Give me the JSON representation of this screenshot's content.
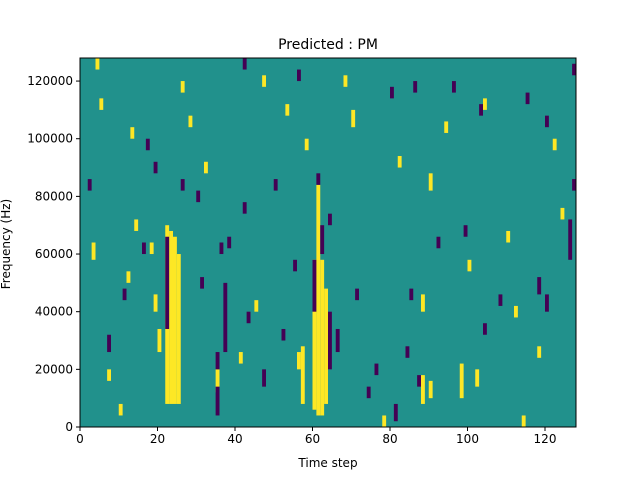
{
  "chart_data": {
    "type": "heatmap",
    "title": "Predicted : PM",
    "xlabel": "Time step",
    "ylabel": "Frequency (Hz)",
    "xlim": [
      0,
      128
    ],
    "ylim": [
      0,
      128000
    ],
    "x_ticks": [
      0,
      20,
      40,
      60,
      80,
      100,
      120
    ],
    "y_ticks": [
      0,
      20000,
      40000,
      60000,
      80000,
      100000,
      120000
    ],
    "x_tick_labels": [
      "0",
      "20",
      "40",
      "60",
      "80",
      "100",
      "120"
    ],
    "y_tick_labels": [
      "0",
      "20000",
      "40000",
      "60000",
      "80000",
      "100000",
      "120000"
    ],
    "grid": false,
    "colormap": "viridis",
    "background_value": 0,
    "values_legend": {
      "-1": "#440154",
      "0": "#21918c",
      "1": "#fde725"
    },
    "bin_hz": 2000,
    "cells": [
      {
        "t": 22,
        "f0": 8000,
        "f1": 70000,
        "v": 1
      },
      {
        "t": 23,
        "f0": 8000,
        "f1": 68000,
        "v": 1
      },
      {
        "t": 24,
        "f0": 8000,
        "f1": 66000,
        "v": 1
      },
      {
        "t": 25,
        "f0": 8000,
        "f1": 60000,
        "v": 1
      },
      {
        "t": 60,
        "f0": 6000,
        "f1": 58000,
        "v": 1
      },
      {
        "t": 61,
        "f0": 4000,
        "f1": 84000,
        "v": 1
      },
      {
        "t": 62,
        "f0": 4000,
        "f1": 58000,
        "v": 1
      },
      {
        "t": 63,
        "f0": 8000,
        "f1": 48000,
        "v": 1
      },
      {
        "t": 56,
        "f0": 20000,
        "f1": 26000,
        "v": 1
      },
      {
        "t": 57,
        "f0": 8000,
        "f1": 28000,
        "v": 1
      },
      {
        "t": 20,
        "f0": 26000,
        "f1": 34000,
        "v": 1
      },
      {
        "t": 19,
        "f0": 40000,
        "f1": 46000,
        "v": 1
      },
      {
        "t": 18,
        "f0": 60000,
        "f1": 64000,
        "v": 1
      },
      {
        "t": 4,
        "f0": 124000,
        "f1": 128000,
        "v": 1
      },
      {
        "t": 5,
        "f0": 110000,
        "f1": 114000,
        "v": 1
      },
      {
        "t": 13,
        "f0": 100000,
        "f1": 104000,
        "v": 1
      },
      {
        "t": 26,
        "f0": 116000,
        "f1": 120000,
        "v": 1
      },
      {
        "t": 28,
        "f0": 104000,
        "f1": 108000,
        "v": 1
      },
      {
        "t": 32,
        "f0": 88000,
        "f1": 92000,
        "v": 1
      },
      {
        "t": 47,
        "f0": 118000,
        "f1": 122000,
        "v": 1
      },
      {
        "t": 53,
        "f0": 108000,
        "f1": 112000,
        "v": 1
      },
      {
        "t": 58,
        "f0": 96000,
        "f1": 100000,
        "v": 1
      },
      {
        "t": 68,
        "f0": 118000,
        "f1": 122000,
        "v": 1
      },
      {
        "t": 70,
        "f0": 104000,
        "f1": 110000,
        "v": 1
      },
      {
        "t": 82,
        "f0": 90000,
        "f1": 94000,
        "v": 1
      },
      {
        "t": 90,
        "f0": 82000,
        "f1": 88000,
        "v": 1
      },
      {
        "t": 94,
        "f0": 102000,
        "f1": 106000,
        "v": 1
      },
      {
        "t": 104,
        "f0": 110000,
        "f1": 114000,
        "v": 1
      },
      {
        "t": 110,
        "f0": 64000,
        "f1": 68000,
        "v": 1
      },
      {
        "t": 114,
        "f0": 0,
        "f1": 4000,
        "v": 1
      },
      {
        "t": 118,
        "f0": 24000,
        "f1": 28000,
        "v": 1
      },
      {
        "t": 122,
        "f0": 96000,
        "f1": 100000,
        "v": 1
      },
      {
        "t": 124,
        "f0": 72000,
        "f1": 76000,
        "v": 1
      },
      {
        "t": 98,
        "f0": 10000,
        "f1": 22000,
        "v": 1
      },
      {
        "t": 102,
        "f0": 14000,
        "f1": 20000,
        "v": 1
      },
      {
        "t": 88,
        "f0": 8000,
        "f1": 18000,
        "v": 1
      },
      {
        "t": 90,
        "f0": 10000,
        "f1": 16000,
        "v": 1
      },
      {
        "t": 78,
        "f0": 0,
        "f1": 4000,
        "v": 1
      },
      {
        "t": 10,
        "f0": 4000,
        "f1": 8000,
        "v": 1
      },
      {
        "t": 7,
        "f0": 16000,
        "f1": 20000,
        "v": 1
      },
      {
        "t": 35,
        "f0": 12000,
        "f1": 20000,
        "v": 1
      },
      {
        "t": 41,
        "f0": 22000,
        "f1": 26000,
        "v": 1
      },
      {
        "t": 45,
        "f0": 40000,
        "f1": 44000,
        "v": 1
      },
      {
        "t": 12,
        "f0": 50000,
        "f1": 54000,
        "v": 1
      },
      {
        "t": 14,
        "f0": 68000,
        "f1": 72000,
        "v": 1
      },
      {
        "t": 3,
        "f0": 58000,
        "f1": 64000,
        "v": 1
      },
      {
        "t": 100,
        "f0": 54000,
        "f1": 58000,
        "v": 1
      },
      {
        "t": 88,
        "f0": 40000,
        "f1": 46000,
        "v": 1
      },
      {
        "t": 112,
        "f0": 38000,
        "f1": 42000,
        "v": 1
      },
      {
        "t": 22,
        "f0": 34000,
        "f1": 66000,
        "v": -1
      },
      {
        "t": 35,
        "f0": 4000,
        "f1": 14000,
        "v": -1
      },
      {
        "t": 35,
        "f0": 20000,
        "f1": 26000,
        "v": -1
      },
      {
        "t": 37,
        "f0": 26000,
        "f1": 50000,
        "v": -1
      },
      {
        "t": 36,
        "f0": 60000,
        "f1": 64000,
        "v": -1
      },
      {
        "t": 38,
        "f0": 62000,
        "f1": 66000,
        "v": -1
      },
      {
        "t": 64,
        "f0": 20000,
        "f1": 40000,
        "v": -1
      },
      {
        "t": 66,
        "f0": 26000,
        "f1": 34000,
        "v": -1
      },
      {
        "t": 60,
        "f0": 40000,
        "f1": 58000,
        "v": -1
      },
      {
        "t": 62,
        "f0": 60000,
        "f1": 70000,
        "v": -1
      },
      {
        "t": 61,
        "f0": 84000,
        "f1": 88000,
        "v": -1
      },
      {
        "t": 64,
        "f0": 70000,
        "f1": 74000,
        "v": -1
      },
      {
        "t": 71,
        "f0": 44000,
        "f1": 48000,
        "v": -1
      },
      {
        "t": 74,
        "f0": 10000,
        "f1": 14000,
        "v": -1
      },
      {
        "t": 76,
        "f0": 18000,
        "f1": 22000,
        "v": -1
      },
      {
        "t": 81,
        "f0": 2000,
        "f1": 8000,
        "v": -1
      },
      {
        "t": 84,
        "f0": 24000,
        "f1": 28000,
        "v": -1
      },
      {
        "t": 87,
        "f0": 14000,
        "f1": 18000,
        "v": -1
      },
      {
        "t": 43,
        "f0": 36000,
        "f1": 40000,
        "v": -1
      },
      {
        "t": 47,
        "f0": 14000,
        "f1": 20000,
        "v": -1
      },
      {
        "t": 52,
        "f0": 30000,
        "f1": 34000,
        "v": -1
      },
      {
        "t": 55,
        "f0": 54000,
        "f1": 58000,
        "v": -1
      },
      {
        "t": 42,
        "f0": 74000,
        "f1": 78000,
        "v": -1
      },
      {
        "t": 50,
        "f0": 82000,
        "f1": 86000,
        "v": -1
      },
      {
        "t": 26,
        "f0": 82000,
        "f1": 86000,
        "v": -1
      },
      {
        "t": 19,
        "f0": 88000,
        "f1": 92000,
        "v": -1
      },
      {
        "t": 17,
        "f0": 96000,
        "f1": 100000,
        "v": -1
      },
      {
        "t": 42,
        "f0": 124000,
        "f1": 128000,
        "v": -1
      },
      {
        "t": 56,
        "f0": 120000,
        "f1": 124000,
        "v": -1
      },
      {
        "t": 80,
        "f0": 114000,
        "f1": 118000,
        "v": -1
      },
      {
        "t": 86,
        "f0": 116000,
        "f1": 120000,
        "v": -1
      },
      {
        "t": 96,
        "f0": 116000,
        "f1": 120000,
        "v": -1
      },
      {
        "t": 103,
        "f0": 108000,
        "f1": 112000,
        "v": -1
      },
      {
        "t": 115,
        "f0": 112000,
        "f1": 116000,
        "v": -1
      },
      {
        "t": 120,
        "f0": 104000,
        "f1": 108000,
        "v": -1
      },
      {
        "t": 127,
        "f0": 122000,
        "f1": 126000,
        "v": -1
      },
      {
        "t": 127,
        "f0": 82000,
        "f1": 86000,
        "v": -1
      },
      {
        "t": 126,
        "f0": 58000,
        "f1": 72000,
        "v": -1
      },
      {
        "t": 120,
        "f0": 40000,
        "f1": 46000,
        "v": -1
      },
      {
        "t": 118,
        "f0": 46000,
        "f1": 52000,
        "v": -1
      },
      {
        "t": 104,
        "f0": 32000,
        "f1": 36000,
        "v": -1
      },
      {
        "t": 108,
        "f0": 42000,
        "f1": 46000,
        "v": -1
      },
      {
        "t": 99,
        "f0": 66000,
        "f1": 70000,
        "v": -1
      },
      {
        "t": 92,
        "f0": 62000,
        "f1": 66000,
        "v": -1
      },
      {
        "t": 85,
        "f0": 44000,
        "f1": 48000,
        "v": -1
      },
      {
        "t": 7,
        "f0": 26000,
        "f1": 32000,
        "v": -1
      },
      {
        "t": 2,
        "f0": 82000,
        "f1": 86000,
        "v": -1
      },
      {
        "t": 16,
        "f0": 60000,
        "f1": 64000,
        "v": -1
      },
      {
        "t": 31,
        "f0": 48000,
        "f1": 52000,
        "v": -1
      },
      {
        "t": 30,
        "f0": 78000,
        "f1": 82000,
        "v": -1
      },
      {
        "t": 11,
        "f0": 44000,
        "f1": 48000,
        "v": -1
      }
    ]
  }
}
